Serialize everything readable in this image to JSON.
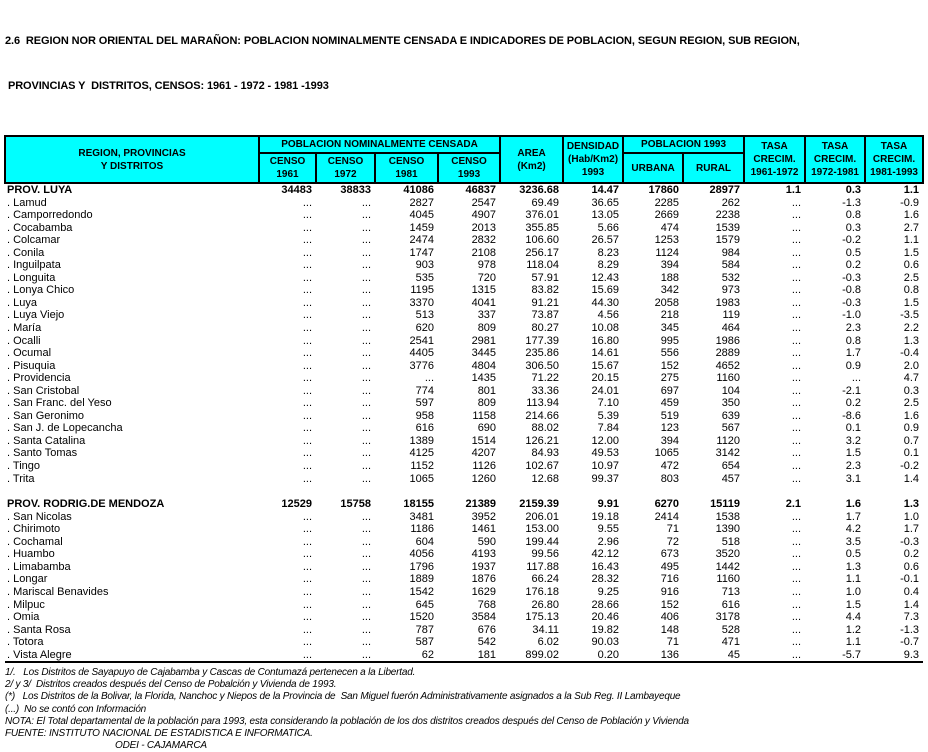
{
  "colors": {
    "header_bg": "#00ffff",
    "border": "#000000",
    "text": "#000000"
  },
  "title": {
    "line1": "2.6  REGION NOR ORIENTAL DEL MARAÑON: POBLACION NOMINALMENTE CENSADA E INDICADORES DE POBLACION, SEGUN REGION, SUB REGION,",
    "line2": " PROVINCIAS Y  DISTRITOS, CENSOS: 1961 - 1972 - 1981 -1993"
  },
  "table": {
    "headers": {
      "region": "REGION, PROVINCIAS\nY DISTRITOS",
      "pob_censada_group": "POBLACION  NOMINALMENTE CENSADA",
      "censo_1961": "CENSO\n1961",
      "censo_1972": "CENSO\n1972",
      "censo_1981": "CENSO\n1981",
      "censo_1993": "CENSO\n1993",
      "area": "AREA\n(Km2)",
      "densidad": "DENSIDAD\n(Hab/Km2)\n1993",
      "pob_1993_group": "POBLACION  1993",
      "urbana": "URBANA",
      "rural": "RURAL",
      "tasa_61_72": "TASA\nCRECIM.\n1961-1972",
      "tasa_72_81": "TASA\nCRECIM.\n1972-1981",
      "tasa_81_93": "TASA\nCRECIM.\n1981-1993"
    },
    "rows": [
      {
        "name": "PROV. LUYA",
        "bold": true,
        "values": [
          "34483",
          "38833",
          "41086",
          "46837",
          "3236.68",
          "14.47",
          "17860",
          "28977",
          "1.1",
          "0.3",
          "1.1"
        ]
      },
      {
        "name": ". Lamud",
        "values": [
          "...",
          "...",
          "2827",
          "2547",
          "69.49",
          "36.65",
          "2285",
          "262",
          "...",
          "-1.3",
          "-0.9"
        ]
      },
      {
        "name": ". Camporredondo",
        "values": [
          "...",
          "...",
          "4045",
          "4907",
          "376.01",
          "13.05",
          "2669",
          "2238",
          "...",
          "0.8",
          "1.6"
        ]
      },
      {
        "name": ". Cocabamba",
        "values": [
          "...",
          "...",
          "1459",
          "2013",
          "355.85",
          "5.66",
          "474",
          "1539",
          "...",
          "0.3",
          "2.7"
        ]
      },
      {
        "name": ". Colcamar",
        "values": [
          "...",
          "...",
          "2474",
          "2832",
          "106.60",
          "26.57",
          "1253",
          "1579",
          "...",
          "-0.2",
          "1.1"
        ]
      },
      {
        "name": ". Conila",
        "values": [
          "...",
          "...",
          "1747",
          "2108",
          "256.17",
          "8.23",
          "1124",
          "984",
          "...",
          "0.5",
          "1.5"
        ]
      },
      {
        "name": ". Inguilpata",
        "values": [
          "...",
          "...",
          "903",
          "978",
          "118.04",
          "8.29",
          "394",
          "584",
          "...",
          "0.2",
          "0.6"
        ]
      },
      {
        "name": ". Longuita",
        "values": [
          "...",
          "...",
          "535",
          "720",
          "57.91",
          "12.43",
          "188",
          "532",
          "...",
          "-0.3",
          "2.5"
        ]
      },
      {
        "name": ". Lonya Chico",
        "values": [
          "...",
          "...",
          "1195",
          "1315",
          "83.82",
          "15.69",
          "342",
          "973",
          "...",
          "-0.8",
          "0.8"
        ]
      },
      {
        "name": ". Luya",
        "values": [
          "...",
          "...",
          "3370",
          "4041",
          "91.21",
          "44.30",
          "2058",
          "1983",
          "...",
          "-0.3",
          "1.5"
        ]
      },
      {
        "name": ". Luya Viejo",
        "values": [
          "...",
          "...",
          "513",
          "337",
          "73.87",
          "4.56",
          "218",
          "119",
          "...",
          "-1.0",
          "-3.5"
        ]
      },
      {
        "name": ". María",
        "values": [
          "...",
          "...",
          "620",
          "809",
          "80.27",
          "10.08",
          "345",
          "464",
          "...",
          "2.3",
          "2.2"
        ]
      },
      {
        "name": ". Ocalli",
        "values": [
          "...",
          "...",
          "2541",
          "2981",
          "177.39",
          "16.80",
          "995",
          "1986",
          "...",
          "0.8",
          "1.3"
        ]
      },
      {
        "name": ". Ocumal",
        "values": [
          "...",
          "...",
          "4405",
          "3445",
          "235.86",
          "14.61",
          "556",
          "2889",
          "...",
          "1.7",
          "-0.4"
        ]
      },
      {
        "name": ". Pisuquia",
        "values": [
          "...",
          "...",
          "3776",
          "4804",
          "306.50",
          "15.67",
          "152",
          "4652",
          "...",
          "0.9",
          "2.0"
        ]
      },
      {
        "name": ". Providencia",
        "values": [
          "...",
          "...",
          "...",
          "1435",
          "71.22",
          "20.15",
          "275",
          "1160",
          "...",
          "...",
          "4.7"
        ]
      },
      {
        "name": ". San Cristobal",
        "values": [
          "...",
          "...",
          "774",
          "801",
          "33.36",
          "24.01",
          "697",
          "104",
          "...",
          "-2.1",
          "0.3"
        ]
      },
      {
        "name": ". San Franc. del Yeso",
        "values": [
          "...",
          "...",
          "597",
          "809",
          "113.94",
          "7.10",
          "459",
          "350",
          "...",
          "0.2",
          "2.5"
        ]
      },
      {
        "name": ". San Geronimo",
        "values": [
          "...",
          "...",
          "958",
          "1158",
          "214.66",
          "5.39",
          "519",
          "639",
          "...",
          "-8.6",
          "1.6"
        ]
      },
      {
        "name": ". San J. de Lopecancha",
        "values": [
          "...",
          "...",
          "616",
          "690",
          "88.02",
          "7.84",
          "123",
          "567",
          "...",
          "0.1",
          "0.9"
        ]
      },
      {
        "name": ". Santa Catalina",
        "values": [
          "...",
          "...",
          "1389",
          "1514",
          "126.21",
          "12.00",
          "394",
          "1120",
          "...",
          "3.2",
          "0.7"
        ]
      },
      {
        "name": ". Santo Tomas",
        "values": [
          "...",
          "...",
          "4125",
          "4207",
          "84.93",
          "49.53",
          "1065",
          "3142",
          "...",
          "1.5",
          "0.1"
        ]
      },
      {
        "name": ". Tingo",
        "values": [
          "...",
          "...",
          "1152",
          "1126",
          "102.67",
          "10.97",
          "472",
          "654",
          "...",
          "2.3",
          "-0.2"
        ]
      },
      {
        "name": ". Trita",
        "values": [
          "...",
          "...",
          "1065",
          "1260",
          "12.68",
          "99.37",
          "803",
          "457",
          "...",
          "3.1",
          "1.4"
        ]
      },
      {
        "spacer": true
      },
      {
        "name": "PROV. RODRIG.DE MENDOZA",
        "bold": true,
        "values": [
          "12529",
          "15758",
          "18155",
          "21389",
          "2159.39",
          "9.91",
          "6270",
          "15119",
          "2.1",
          "1.6",
          "1.3"
        ]
      },
      {
        "name": ". San Nicolas",
        "values": [
          "...",
          "...",
          "3481",
          "3952",
          "206.01",
          "19.18",
          "2414",
          "1538",
          "...",
          "1.7",
          "1.0"
        ]
      },
      {
        "name": ". Chirimoto",
        "values": [
          "...",
          "...",
          "1186",
          "1461",
          "153.00",
          "9.55",
          "71",
          "1390",
          "...",
          "4.2",
          "1.7"
        ]
      },
      {
        "name": ". Cochamal",
        "values": [
          "...",
          "...",
          "604",
          "590",
          "199.44",
          "2.96",
          "72",
          "518",
          "...",
          "3.5",
          "-0.3"
        ]
      },
      {
        "name": ". Huambo",
        "values": [
          "...",
          "...",
          "4056",
          "4193",
          "99.56",
          "42.12",
          "673",
          "3520",
          "...",
          "0.5",
          "0.2"
        ]
      },
      {
        "name": ". Limabamba",
        "values": [
          "...",
          "...",
          "1796",
          "1937",
          "117.88",
          "16.43",
          "495",
          "1442",
          "...",
          "1.3",
          "0.6"
        ]
      },
      {
        "name": ". Longar",
        "values": [
          "...",
          "...",
          "1889",
          "1876",
          "66.24",
          "28.32",
          "716",
          "1160",
          "...",
          "1.1",
          "-0.1"
        ]
      },
      {
        "name": ". Mariscal Benavides",
        "values": [
          "...",
          "...",
          "1542",
          "1629",
          "176.18",
          "9.25",
          "916",
          "713",
          "...",
          "1.0",
          "0.4"
        ]
      },
      {
        "name": ". Milpuc",
        "values": [
          "...",
          "...",
          "645",
          "768",
          "26.80",
          "28.66",
          "152",
          "616",
          "...",
          "1.5",
          "1.4"
        ]
      },
      {
        "name": ". Omia",
        "values": [
          "...",
          "...",
          "1520",
          "3584",
          "175.13",
          "20.46",
          "406",
          "3178",
          "...",
          "4.4",
          "7.3"
        ]
      },
      {
        "name": ". Santa Rosa",
        "values": [
          "...",
          "...",
          "787",
          "676",
          "34.11",
          "19.82",
          "148",
          "528",
          "...",
          "1.2",
          "-1.3"
        ]
      },
      {
        "name": ". Totora",
        "values": [
          "...",
          "...",
          "587",
          "542",
          "6.02",
          "90.03",
          "71",
          "471",
          "...",
          "1.1",
          "-0.7"
        ]
      },
      {
        "name": ". Vista Alegre",
        "values": [
          "...",
          "...",
          "62",
          "181",
          "899.02",
          "0.20",
          "136",
          "45",
          "...",
          "-5.7",
          "9.3"
        ]
      }
    ]
  },
  "footnotes": [
    {
      "text": "1/.   Los Distritos de Sayapuyo de Cajabamba y Cascas de Contumazá pertenecen a la Libertad."
    },
    {
      "text": "2/ y 3/  Distritos creados después del Censo de Pobalción y Vivienda de 1993."
    },
    {
      "text": "(*)   Los Distritos de la Bolivar, la Florida, Nanchoc y Niepos de la Provincia de  San Miguel fuerón Administrativamente asignados a la Sub Reg. II Lambayeque"
    },
    {
      "text": "(...)  No se contó con Información"
    },
    {
      "text": "NOTA: El Total departamental de la población para 1993, esta considerando la población de los dos distritos creados después del Censo de Población y Vivienda"
    },
    {
      "text": "FUENTE: INSTITUTO NACIONAL DE ESTADISTICA E INFORMATICA."
    },
    {
      "text": "ODEI - CAJAMARCA",
      "indent": true
    }
  ]
}
